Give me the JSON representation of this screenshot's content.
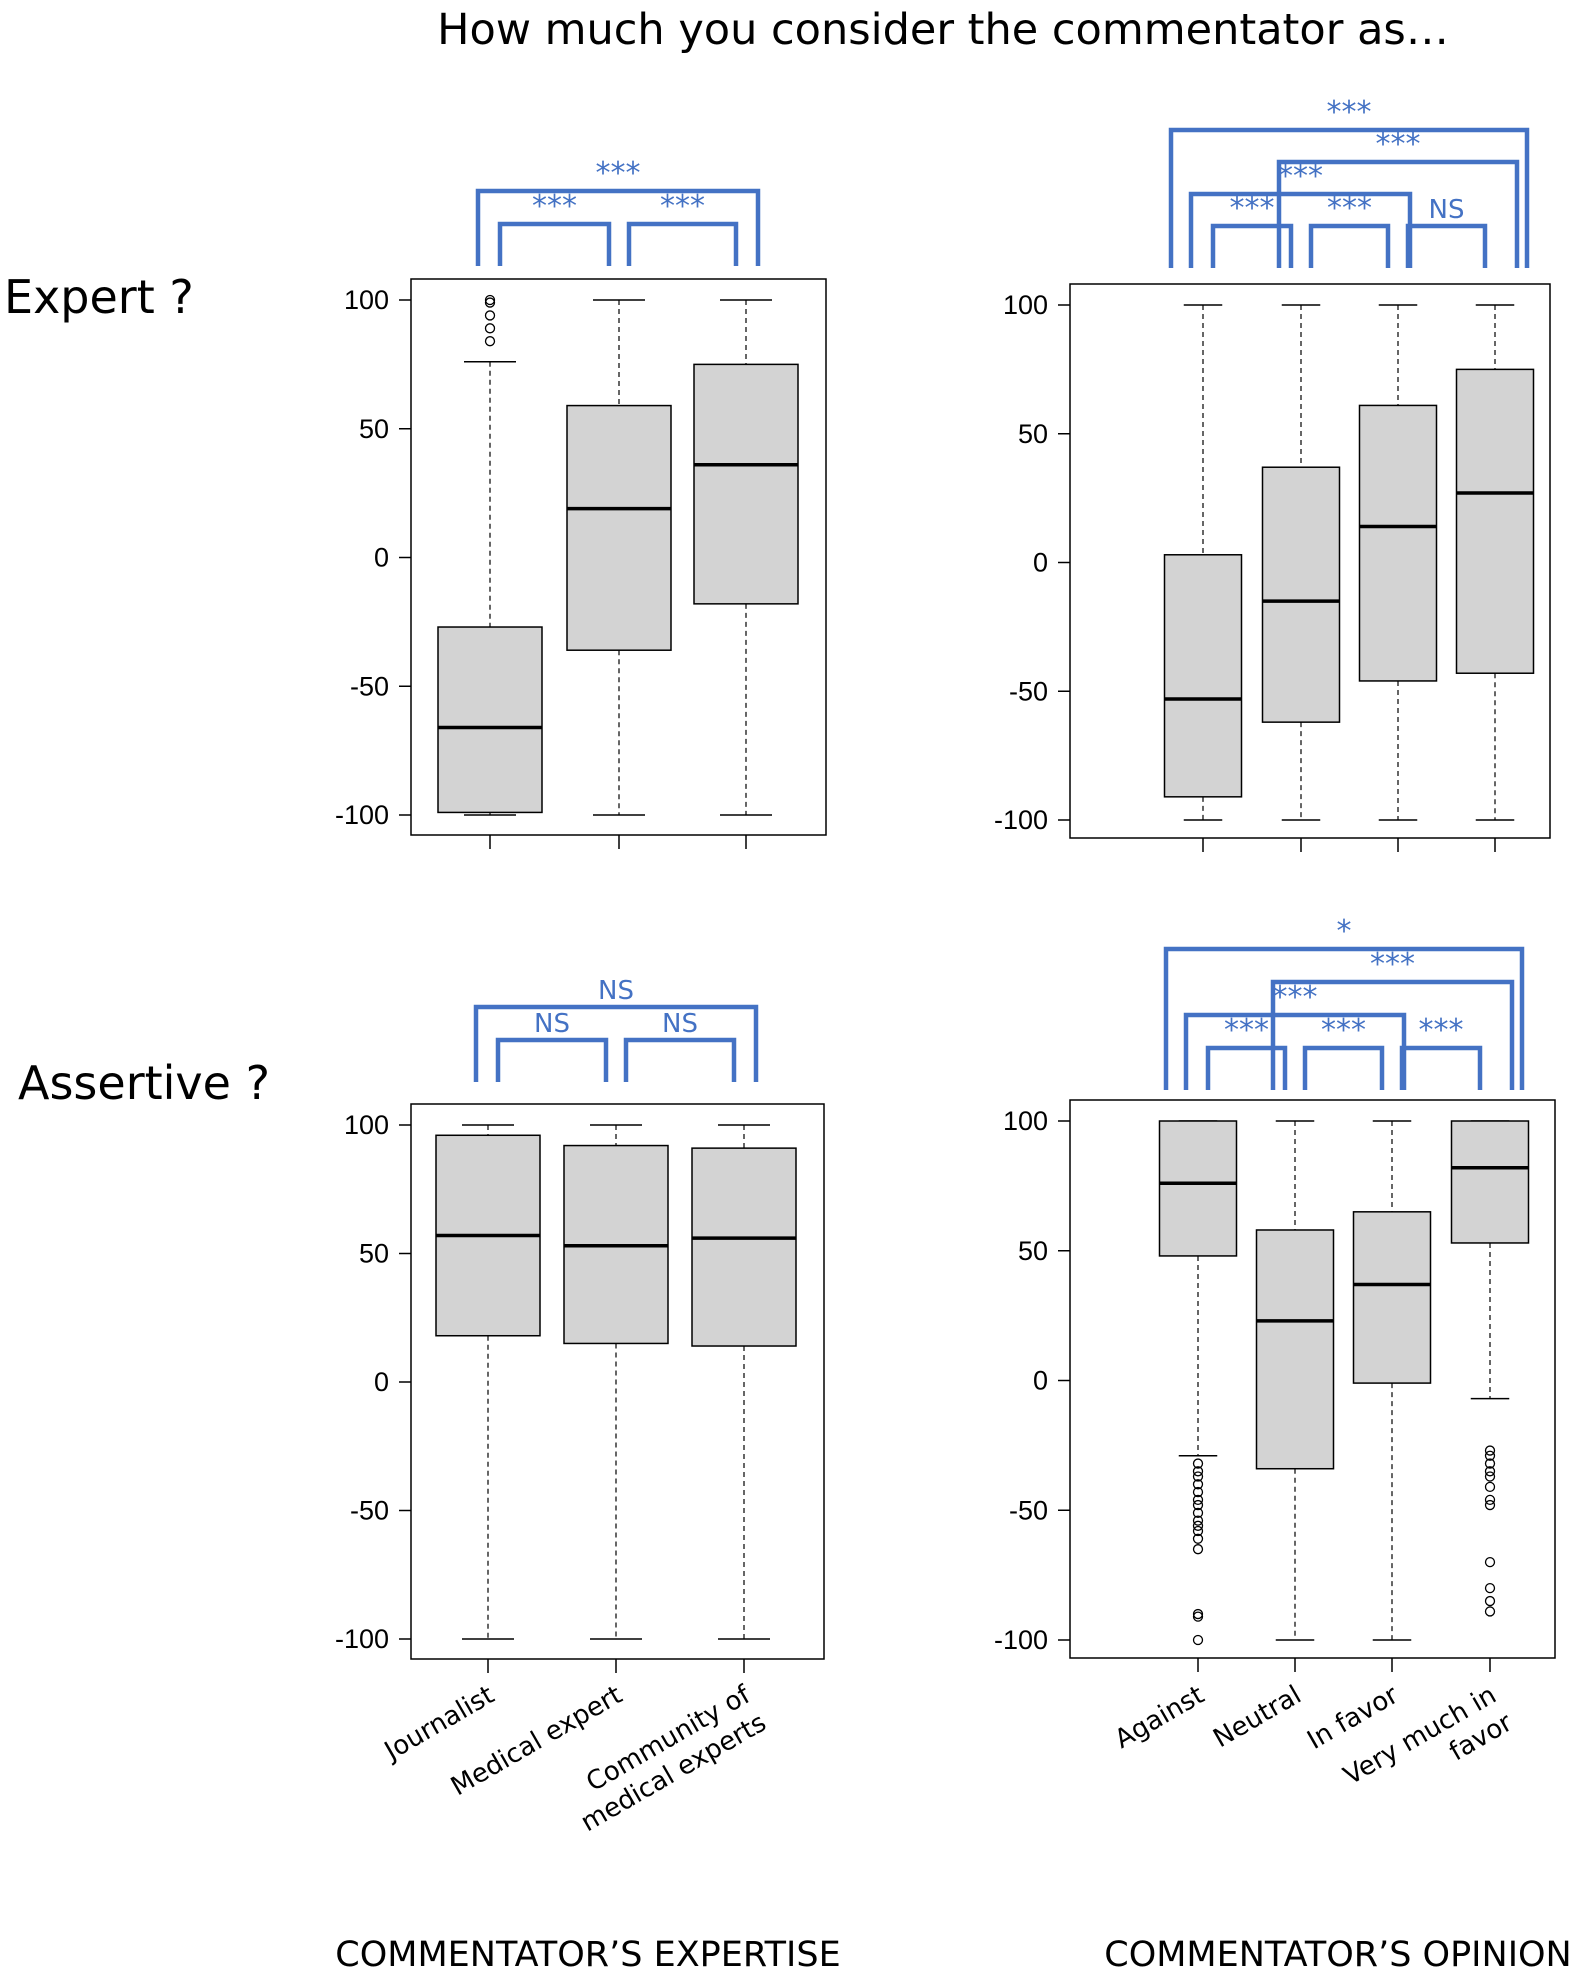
{
  "figure": {
    "title": "How much you consider the commentator as…",
    "row_labels": [
      "Expert ?",
      "Assertive ?"
    ],
    "column_labels": [
      "COMMENTATOR’S EXPERTISE",
      "COMMENTATOR’S OPINION"
    ]
  },
  "colors": {
    "box_fill": "#d3d3d3",
    "bracket": "#4472C4",
    "stroke": "#000000"
  },
  "chart_data": [
    {
      "type": "box",
      "title": "Expert ?",
      "xlabel": "COMMENTATOR’S EXPERTISE",
      "ylim": [
        -100,
        100
      ],
      "yticks": [
        100,
        50,
        0,
        -50,
        -100
      ],
      "categories": [
        [
          "Journalist"
        ],
        [
          "Medical expert"
        ],
        [
          "Community of",
          "medical experts"
        ]
      ],
      "boxes": [
        {
          "whisker_low": -100,
          "q1": -99,
          "median": -66,
          "q3": -27,
          "whisker_high": 76,
          "outliers": [
            84,
            89,
            94,
            99,
            100
          ]
        },
        {
          "whisker_low": -100,
          "q1": -36,
          "median": 19,
          "q3": 59,
          "whisker_high": 100,
          "outliers": []
        },
        {
          "whisker_low": -100,
          "q1": -18,
          "median": 36,
          "q3": 75,
          "whisker_high": 100,
          "outliers": []
        }
      ],
      "comparisons": [
        {
          "from": 0,
          "to": 1,
          "label": "***",
          "level": 1
        },
        {
          "from": 1,
          "to": 2,
          "label": "***",
          "level": 1
        },
        {
          "from": 0,
          "to": 2,
          "label": "***",
          "level": 2
        }
      ]
    },
    {
      "type": "box",
      "title": "Expert ?",
      "xlabel": "COMMENTATOR’S OPINION",
      "ylim": [
        -100,
        100
      ],
      "yticks": [
        100,
        50,
        0,
        -50,
        -100
      ],
      "categories": [
        [
          "Against"
        ],
        [
          "Neutral"
        ],
        [
          "In favor"
        ],
        [
          "Very much in",
          "favor"
        ]
      ],
      "boxes": [
        {
          "whisker_low": -100,
          "q1": -91,
          "median": -53,
          "q3": 3,
          "whisker_high": 100,
          "outliers": []
        },
        {
          "whisker_low": -100,
          "q1": -62,
          "median": -15,
          "q3": 37,
          "whisker_high": 100,
          "outliers": []
        },
        {
          "whisker_low": -100,
          "q1": -46,
          "median": 14,
          "q3": 61,
          "whisker_high": 100,
          "outliers": []
        },
        {
          "whisker_low": -100,
          "q1": -43,
          "median": 27,
          "q3": 75,
          "whisker_high": 100,
          "outliers": []
        }
      ],
      "comparisons": [
        {
          "from": 0,
          "to": 1,
          "label": "***",
          "level": 1
        },
        {
          "from": 1,
          "to": 2,
          "label": "***",
          "level": 1
        },
        {
          "from": 2,
          "to": 3,
          "label": "NS",
          "level": 1
        },
        {
          "from": 0,
          "to": 2,
          "label": "***",
          "level": 2
        },
        {
          "from": 1,
          "to": 3,
          "label": "***",
          "level": 3
        },
        {
          "from": 0,
          "to": 3,
          "label": "***",
          "level": 4
        }
      ]
    },
    {
      "type": "box",
      "title": "Assertive ?",
      "xlabel": "COMMENTATOR’S EXPERTISE",
      "ylim": [
        -100,
        100
      ],
      "yticks": [
        100,
        50,
        0,
        -50,
        -100
      ],
      "categories": [
        [
          "Journalist"
        ],
        [
          "Medical expert"
        ],
        [
          "Community of",
          "medical experts"
        ]
      ],
      "boxes": [
        {
          "whisker_low": -100,
          "q1": 18,
          "median": 57,
          "q3": 96,
          "whisker_high": 100,
          "outliers": []
        },
        {
          "whisker_low": -100,
          "q1": 15,
          "median": 53,
          "q3": 92,
          "whisker_high": 100,
          "outliers": []
        },
        {
          "whisker_low": -100,
          "q1": 14,
          "median": 56,
          "q3": 91,
          "whisker_high": 100,
          "outliers": []
        }
      ],
      "comparisons": [
        {
          "from": 0,
          "to": 1,
          "label": "NS",
          "level": 1
        },
        {
          "from": 1,
          "to": 2,
          "label": "NS",
          "level": 1
        },
        {
          "from": 0,
          "to": 2,
          "label": "NS",
          "level": 2
        }
      ]
    },
    {
      "type": "box",
      "title": "Assertive ?",
      "xlabel": "COMMENTATOR’S OPINION",
      "ylim": [
        -100,
        100
      ],
      "yticks": [
        100,
        50,
        0,
        -50,
        -100
      ],
      "categories": [
        [
          "Against"
        ],
        [
          "Neutral"
        ],
        [
          "In favor"
        ],
        [
          "Very much in",
          "favor"
        ]
      ],
      "boxes": [
        {
          "whisker_low": -29,
          "q1": 48,
          "median": 76,
          "q3": 100,
          "whisker_high": 100,
          "outliers": [
            -32,
            -35,
            -37,
            -40,
            -43,
            -46,
            -48,
            -51,
            -54,
            -56,
            -58,
            -61,
            -65,
            -90,
            -91,
            -100
          ]
        },
        {
          "whisker_low": -100,
          "q1": -34,
          "median": 23,
          "q3": 58,
          "whisker_high": 100,
          "outliers": []
        },
        {
          "whisker_low": -100,
          "q1": -1,
          "median": 37,
          "q3": 65,
          "whisker_high": 100,
          "outliers": []
        },
        {
          "whisker_low": -7,
          "q1": 53,
          "median": 82,
          "q3": 100,
          "whisker_high": 100,
          "outliers": [
            -27,
            -29,
            -32,
            -35,
            -37,
            -41,
            -46,
            -48,
            -70,
            -80,
            -85,
            -89
          ]
        }
      ],
      "comparisons": [
        {
          "from": 0,
          "to": 1,
          "label": "***",
          "level": 1
        },
        {
          "from": 1,
          "to": 2,
          "label": "***",
          "level": 1
        },
        {
          "from": 2,
          "to": 3,
          "label": "***",
          "level": 1
        },
        {
          "from": 0,
          "to": 2,
          "label": "***",
          "level": 2
        },
        {
          "from": 1,
          "to": 3,
          "label": "***",
          "level": 3
        },
        {
          "from": 0,
          "to": 3,
          "label": "*",
          "level": 4
        }
      ]
    }
  ]
}
